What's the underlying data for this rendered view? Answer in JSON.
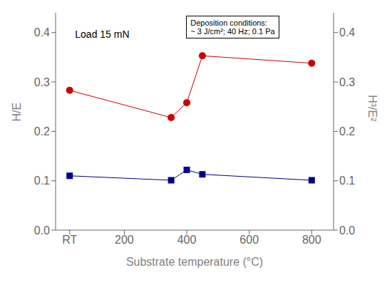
{
  "chart_data": {
    "type": "line",
    "x_label": "Substrate temperature (°C)",
    "y_label": "H/E",
    "y2_label": "H³/E²",
    "x": [
      25,
      350,
      400,
      450,
      800
    ],
    "series": [
      {
        "color": "#cc0000",
        "marker": "circle",
        "values": [
          0.283,
          0.228,
          0.258,
          0.353,
          0.338
        ]
      },
      {
        "color": "#00008B",
        "marker": "square",
        "axis": "y2",
        "values": [
          0.11,
          0.101,
          0.122,
          0.113,
          0.101
        ]
      }
    ],
    "xlim": [
      -20,
      870
    ],
    "xticks": [
      {
        "value": 25,
        "label": "RT"
      },
      200,
      400,
      600,
      800
    ],
    "ylim": [
      0,
      0.44
    ],
    "yticks": [
      {
        "value": 0,
        "label": "0.0"
      },
      0.1,
      0.2,
      0.3,
      0.4
    ],
    "y2lim": [
      0,
      0.44
    ],
    "y2ticks": [
      {
        "value": 0,
        "label": "0.0"
      },
      0.1,
      0.2,
      0.3,
      0.4
    ],
    "annotations": [
      [
        "Load 15 mN"
      ],
      [
        "Deposition conditions:",
        "~ 3 J/cm²; 40 Hz; 0.1 Pa"
      ]
    ]
  }
}
